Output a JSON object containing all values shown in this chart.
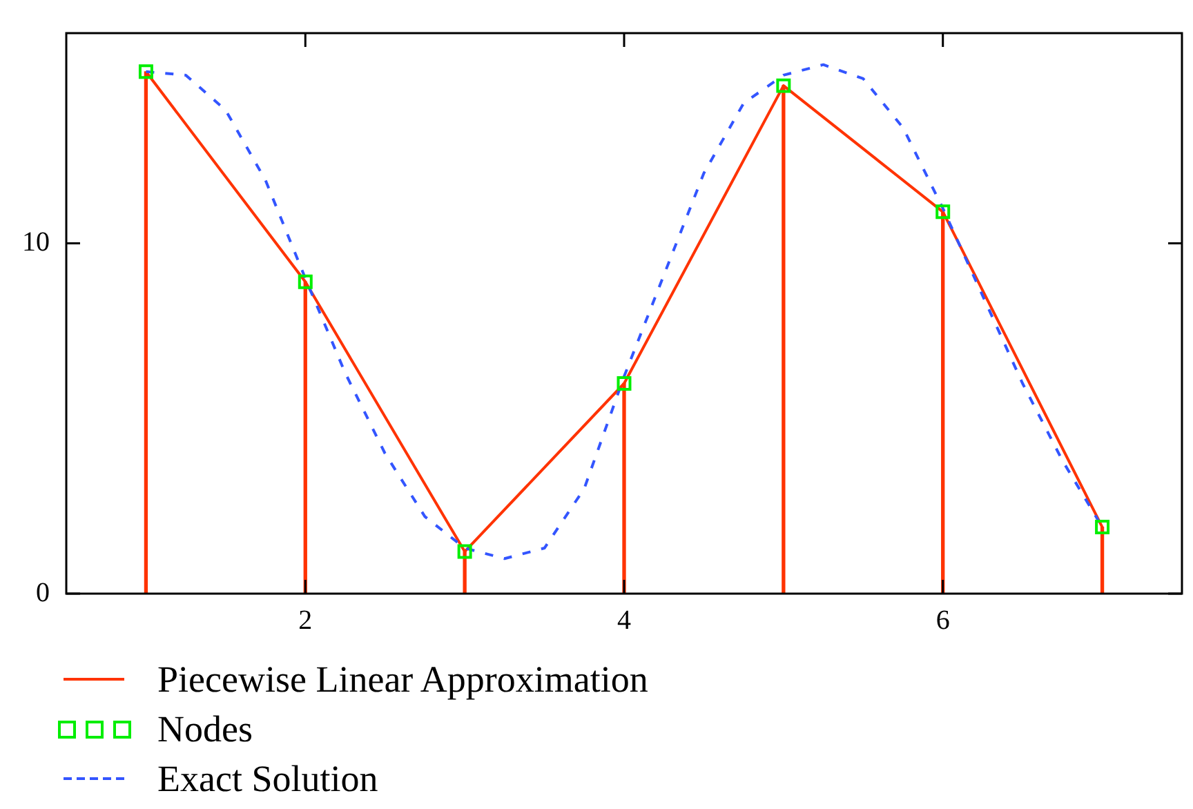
{
  "chart_data": {
    "type": "line",
    "xlim": [
      0.5,
      7.5
    ],
    "xticks": [
      2,
      4,
      6
    ],
    "ylim": [
      0,
      16
    ],
    "yticks": [
      0,
      10
    ],
    "grid": false,
    "legend": "bottom left",
    "series": [
      {
        "type": "bar",
        "color": "#ff3300",
        "x": [
          1,
          2,
          3,
          4,
          5,
          6,
          7
        ],
        "values": [
          14.9,
          8.9,
          1.2,
          6.0,
          14.5,
          10.9,
          1.9
        ]
      },
      {
        "name": "Piecewise Linear Approximation",
        "color": "#ff3300",
        "line_style": "solid",
        "marker": "none",
        "x": [
          1,
          2,
          3,
          4,
          5,
          6,
          7
        ],
        "values": [
          14.9,
          8.9,
          1.2,
          6.0,
          14.5,
          10.9,
          1.9
        ]
      },
      {
        "name": "Nodes",
        "type": "scatter",
        "color": "#00ee00",
        "marker": "square",
        "x": [
          1,
          2,
          3,
          4,
          5,
          6,
          7
        ],
        "values": [
          14.9,
          8.9,
          1.2,
          6.0,
          14.5,
          10.9,
          1.9
        ]
      },
      {
        "name": "Exact Solution",
        "color": "#3355ff",
        "line_style": "dashed",
        "marker": "none",
        "x": [
          1,
          1.25,
          1.5,
          1.75,
          2,
          2.25,
          2.5,
          2.75,
          3,
          3.25,
          3.5,
          3.75,
          4,
          4.25,
          4.5,
          4.75,
          5,
          5.25,
          5.5,
          5.75,
          6,
          6.25,
          6.5,
          6.75,
          7
        ],
        "values": [
          14.9,
          14.8,
          13.8,
          11.8,
          9.0,
          6.3,
          4.0,
          2.2,
          1.3,
          1.0,
          1.3,
          3.0,
          6.2,
          9.1,
          12.0,
          14.0,
          14.8,
          15.1,
          14.7,
          13.3,
          11.0,
          8.5,
          6.0,
          3.8,
          1.9
        ]
      }
    ]
  }
}
